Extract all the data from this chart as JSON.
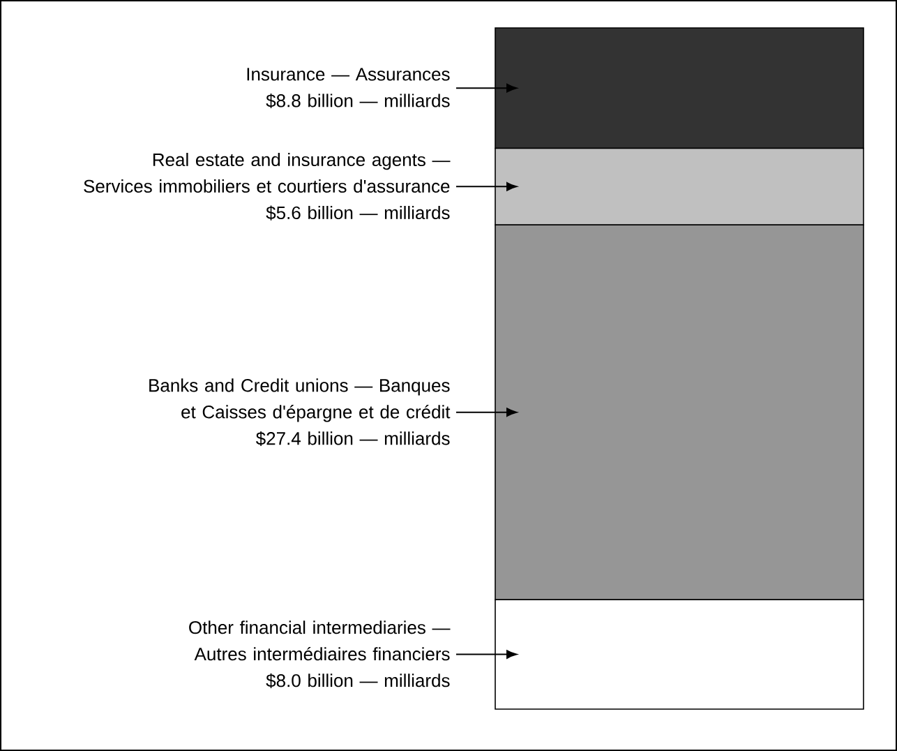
{
  "chart_data": {
    "type": "bar",
    "stacked": true,
    "categories": [
      null
    ],
    "tick_labels": false,
    "series": [
      {
        "name": "Other financial intermediaries — Autres intermédiaires financiers",
        "color": "#ffffff",
        "values": [
          8.0
        ],
        "value_labels": [
          "$8.0 billion — milliards"
        ]
      },
      {
        "name": "Banks and Credit unions — Banques et Caisses d'épargne et de crédit",
        "color": "#969696",
        "values": [
          27.4
        ],
        "value_labels": [
          "$27.4 billion — milliards"
        ]
      },
      {
        "name": "Real estate and insurance agents — Services immobiliers et courtiers d'assurance",
        "color": "#c0c0c0",
        "values": [
          5.6
        ],
        "value_labels": [
          "$5.6 billion — milliards"
        ]
      },
      {
        "name": "Insurance — Assurances",
        "color": "#333333",
        "values": [
          8.8
        ],
        "value_labels": [
          "$8.8 billion — milliards"
        ]
      }
    ]
  }
}
